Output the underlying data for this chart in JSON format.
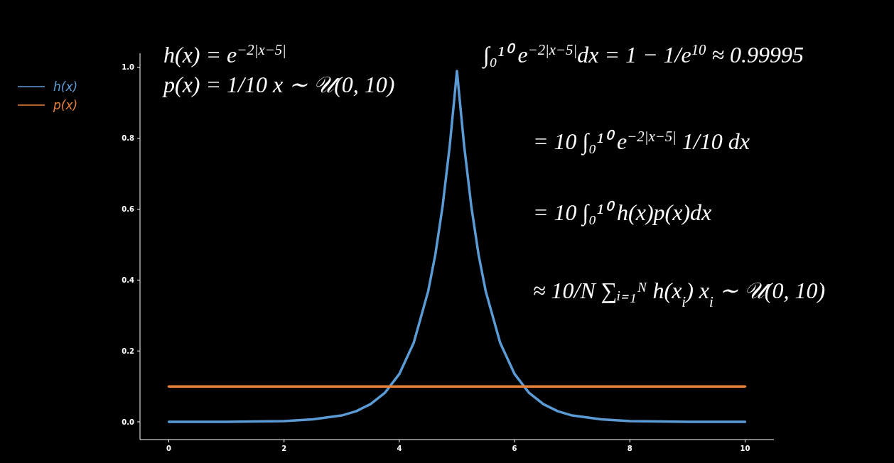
{
  "chart_data": {
    "type": "line",
    "xlim": [
      -0.5,
      10.5
    ],
    "ylim": [
      -0.05,
      1.04
    ],
    "xticks": [
      0,
      2,
      4,
      6,
      8,
      10
    ],
    "yticks": [
      {
        "value": 0,
        "label": "0.0"
      },
      {
        "value": 0.2,
        "label": "0.2"
      },
      {
        "value": 0.4,
        "label": "0.4"
      },
      {
        "value": 0.6,
        "label": "0.6"
      },
      {
        "value": 0.8,
        "label": "0.8"
      },
      {
        "value": 1,
        "label": "1.0"
      }
    ],
    "legend": "left",
    "grid": false,
    "series": [
      {
        "name": "h(x)",
        "color": "#5b9bd5",
        "x": [
          0,
          0.5,
          1,
          1.5,
          2,
          2.5,
          3,
          3.25,
          3.5,
          3.75,
          4,
          4.25,
          4.5,
          4.625,
          4.75,
          4.875,
          4.95,
          5,
          5.05,
          5.125,
          5.25,
          5.375,
          5.5,
          5.75,
          6,
          6.25,
          6.5,
          6.75,
          7,
          7.5,
          8,
          8.5,
          9,
          9.5,
          10
        ],
        "values": [
          0,
          0,
          0,
          0.001,
          0.002,
          0.007,
          0.018,
          0.03,
          0.05,
          0.082,
          0.135,
          0.223,
          0.368,
          0.472,
          0.607,
          0.779,
          0.905,
          0.99,
          0.905,
          0.779,
          0.607,
          0.472,
          0.368,
          0.223,
          0.135,
          0.082,
          0.05,
          0.03,
          0.018,
          0.007,
          0.002,
          0.001,
          0,
          0,
          0
        ]
      },
      {
        "name": "p(x)",
        "color": "#e8823a",
        "x": [
          0,
          10
        ],
        "values": [
          0.1,
          0.1
        ]
      }
    ],
    "annotations": [
      "h(x) = e$^{−2|x−5|}$",
      "p(x) = 1/10   x ∼ 𝒰(0, 10)",
      "∫₀¹⁰ e$^{−2|x−5|}$dx  = 1 − 1/e$^{10}$ ≈ 0.99995",
      "= 10 ∫₀¹⁰ e$^{−2|x−5|}$ 1/10 dx",
      "= 10 ∫₀¹⁰ h(x)p(x)dx",
      "≈ 10/N ∑ᵢ₌₁ᴺ h(x$_{i}$)  x$_{i}$ ∼ 𝒰(0, 10)"
    ]
  }
}
